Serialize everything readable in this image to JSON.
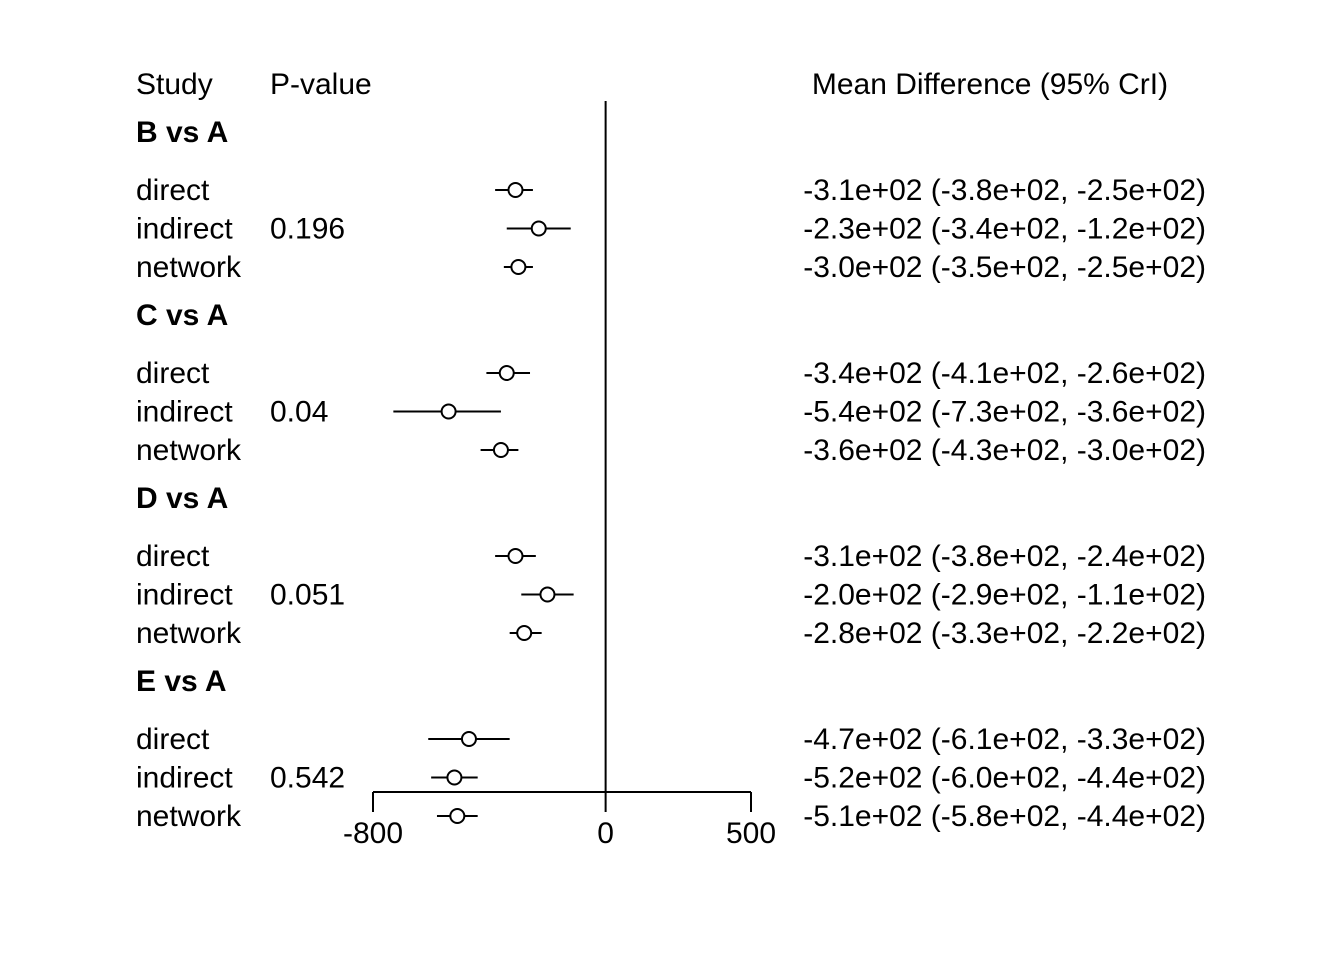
{
  "chart_data": {
    "type": "forest",
    "headers": {
      "study": "Study",
      "pvalue": "P-value",
      "estimate": "Mean Difference (95% CrI)"
    },
    "x_axis": {
      "range": [
        -800,
        500
      ],
      "ticks": [
        -800,
        0,
        500
      ],
      "tick_labels": [
        "-800",
        "0",
        "500"
      ],
      "reference_line": 0
    },
    "groups": [
      {
        "label": "B vs A",
        "pvalue": "0.196",
        "rows": [
          {
            "study": "direct",
            "mean": -310,
            "lower": -380,
            "upper": -250,
            "text": "-3.1e+02 (-3.8e+02, -2.5e+02)"
          },
          {
            "study": "indirect",
            "mean": -230,
            "lower": -340,
            "upper": -120,
            "text": "-2.3e+02 (-3.4e+02, -1.2e+02)"
          },
          {
            "study": "network",
            "mean": -300,
            "lower": -350,
            "upper": -250,
            "text": "-3.0e+02 (-3.5e+02, -2.5e+02)"
          }
        ]
      },
      {
        "label": "C vs A",
        "pvalue": "0.04",
        "rows": [
          {
            "study": "direct",
            "mean": -340,
            "lower": -410,
            "upper": -260,
            "text": "-3.4e+02 (-4.1e+02, -2.6e+02)"
          },
          {
            "study": "indirect",
            "mean": -540,
            "lower": -730,
            "upper": -360,
            "text": "-5.4e+02 (-7.3e+02, -3.6e+02)"
          },
          {
            "study": "network",
            "mean": -360,
            "lower": -430,
            "upper": -300,
            "text": "-3.6e+02 (-4.3e+02, -3.0e+02)"
          }
        ]
      },
      {
        "label": "D vs A",
        "pvalue": "0.051",
        "rows": [
          {
            "study": "direct",
            "mean": -310,
            "lower": -380,
            "upper": -240,
            "text": "-3.1e+02 (-3.8e+02, -2.4e+02)"
          },
          {
            "study": "indirect",
            "mean": -200,
            "lower": -290,
            "upper": -110,
            "text": "-2.0e+02 (-2.9e+02, -1.1e+02)"
          },
          {
            "study": "network",
            "mean": -280,
            "lower": -330,
            "upper": -220,
            "text": "-2.8e+02 (-3.3e+02, -2.2e+02)"
          }
        ]
      },
      {
        "label": "E vs A",
        "pvalue": "0.542",
        "rows": [
          {
            "study": "direct",
            "mean": -470,
            "lower": -610,
            "upper": -330,
            "text": "-4.7e+02 (-6.1e+02, -3.3e+02)"
          },
          {
            "study": "indirect",
            "mean": -520,
            "lower": -600,
            "upper": -440,
            "text": "-5.2e+02 (-6.0e+02, -4.4e+02)"
          },
          {
            "study": "network",
            "mean": -510,
            "lower": -580,
            "upper": -440,
            "text": "-5.1e+02 (-5.8e+02, -4.4e+02)"
          }
        ]
      }
    ]
  }
}
